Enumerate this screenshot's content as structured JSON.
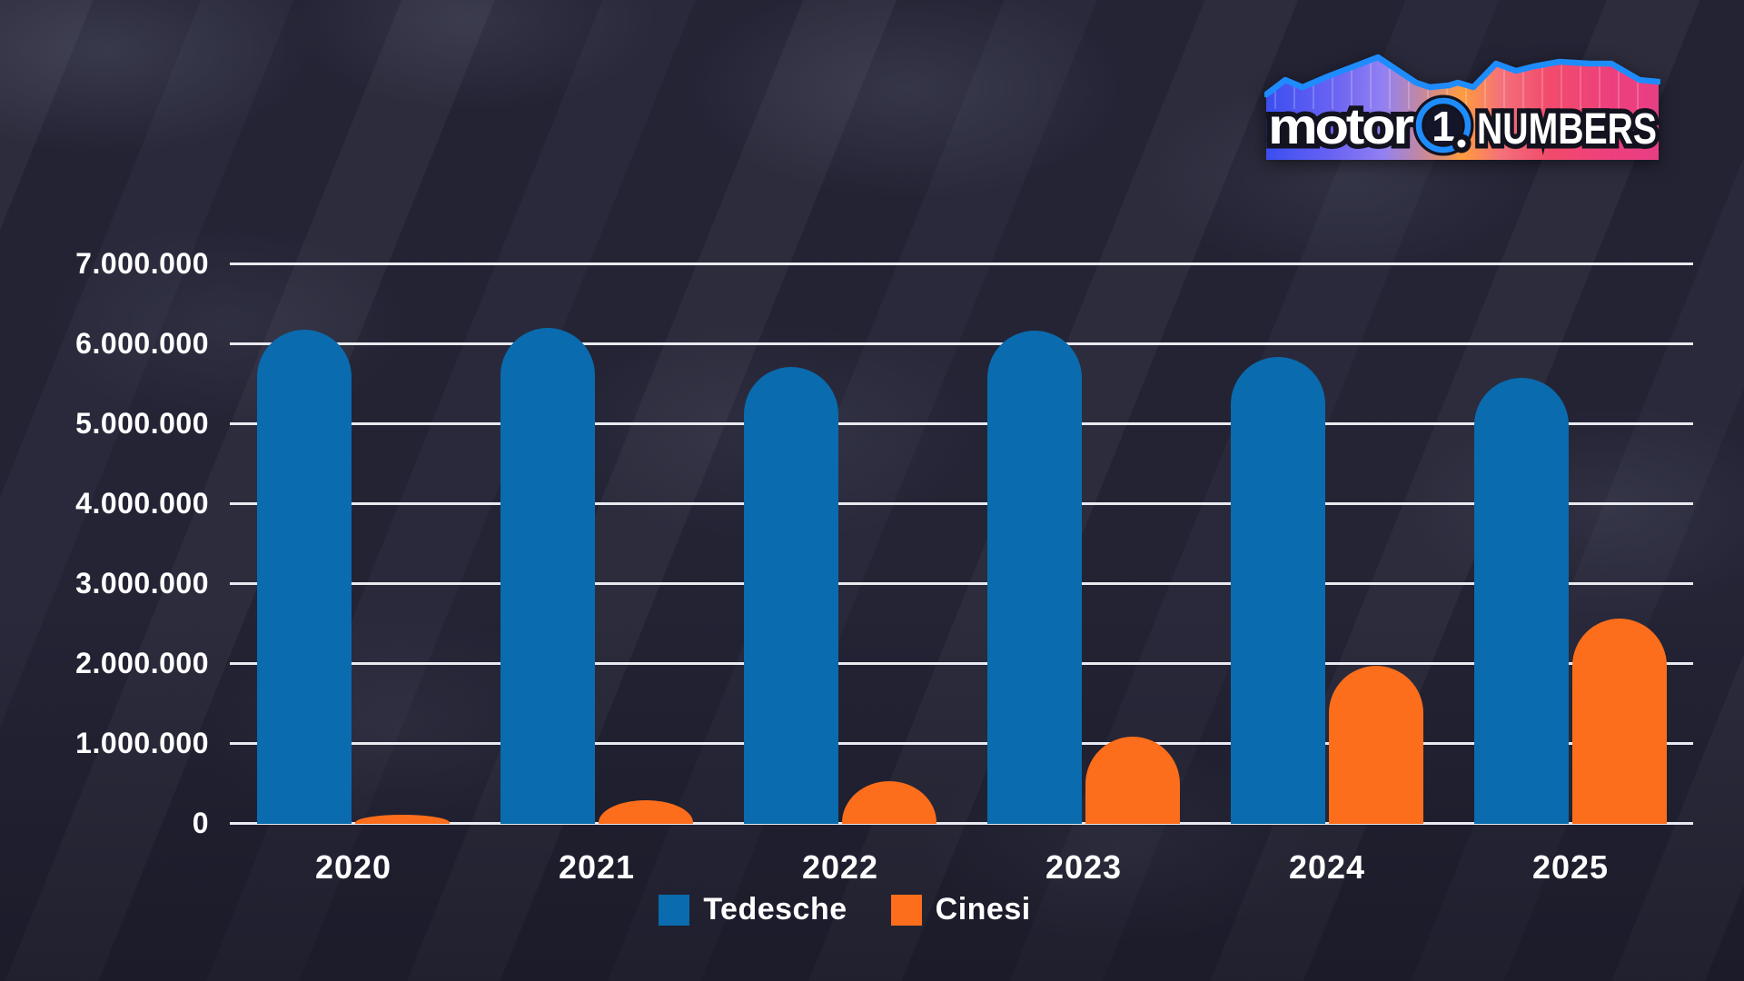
{
  "logo": {
    "brand": "motor",
    "one": "1",
    "dot": ".",
    "suffix": "NUMBERS",
    "ring_color": "#1e8cfd",
    "text_color": "#ffffff",
    "outline_color": "#13131f"
  },
  "chart_data": {
    "type": "bar",
    "title": "",
    "categories": [
      "2020",
      "2021",
      "2022",
      "2023",
      "2024",
      "2025"
    ],
    "series": [
      {
        "name": "Tedesche",
        "color": "#0a6bae",
        "values": [
          6170000,
          6190000,
          5710000,
          6160000,
          5830000,
          5570000
        ]
      },
      {
        "name": "Cinesi",
        "color": "#fc6e1b",
        "values": [
          100000,
          280000,
          520000,
          1080000,
          1970000,
          2560000
        ]
      }
    ],
    "y_ticks": [
      {
        "value": 0,
        "label": "0"
      },
      {
        "value": 1000000,
        "label": "1.000.000"
      },
      {
        "value": 2000000,
        "label": "2.000.000"
      },
      {
        "value": 3000000,
        "label": "3.000.000"
      },
      {
        "value": 4000000,
        "label": "4.000.000"
      },
      {
        "value": 5000000,
        "label": "5.000.000"
      },
      {
        "value": 6000000,
        "label": "6.000.000"
      },
      {
        "value": 7000000,
        "label": "7.000.000"
      }
    ],
    "ylim": [
      0,
      7000000
    ],
    "xlabel": "",
    "ylabel": "",
    "grid": true,
    "legend_position": "bottom",
    "gridline_color": "#e9e9f0",
    "label_color": "#ffffff"
  }
}
